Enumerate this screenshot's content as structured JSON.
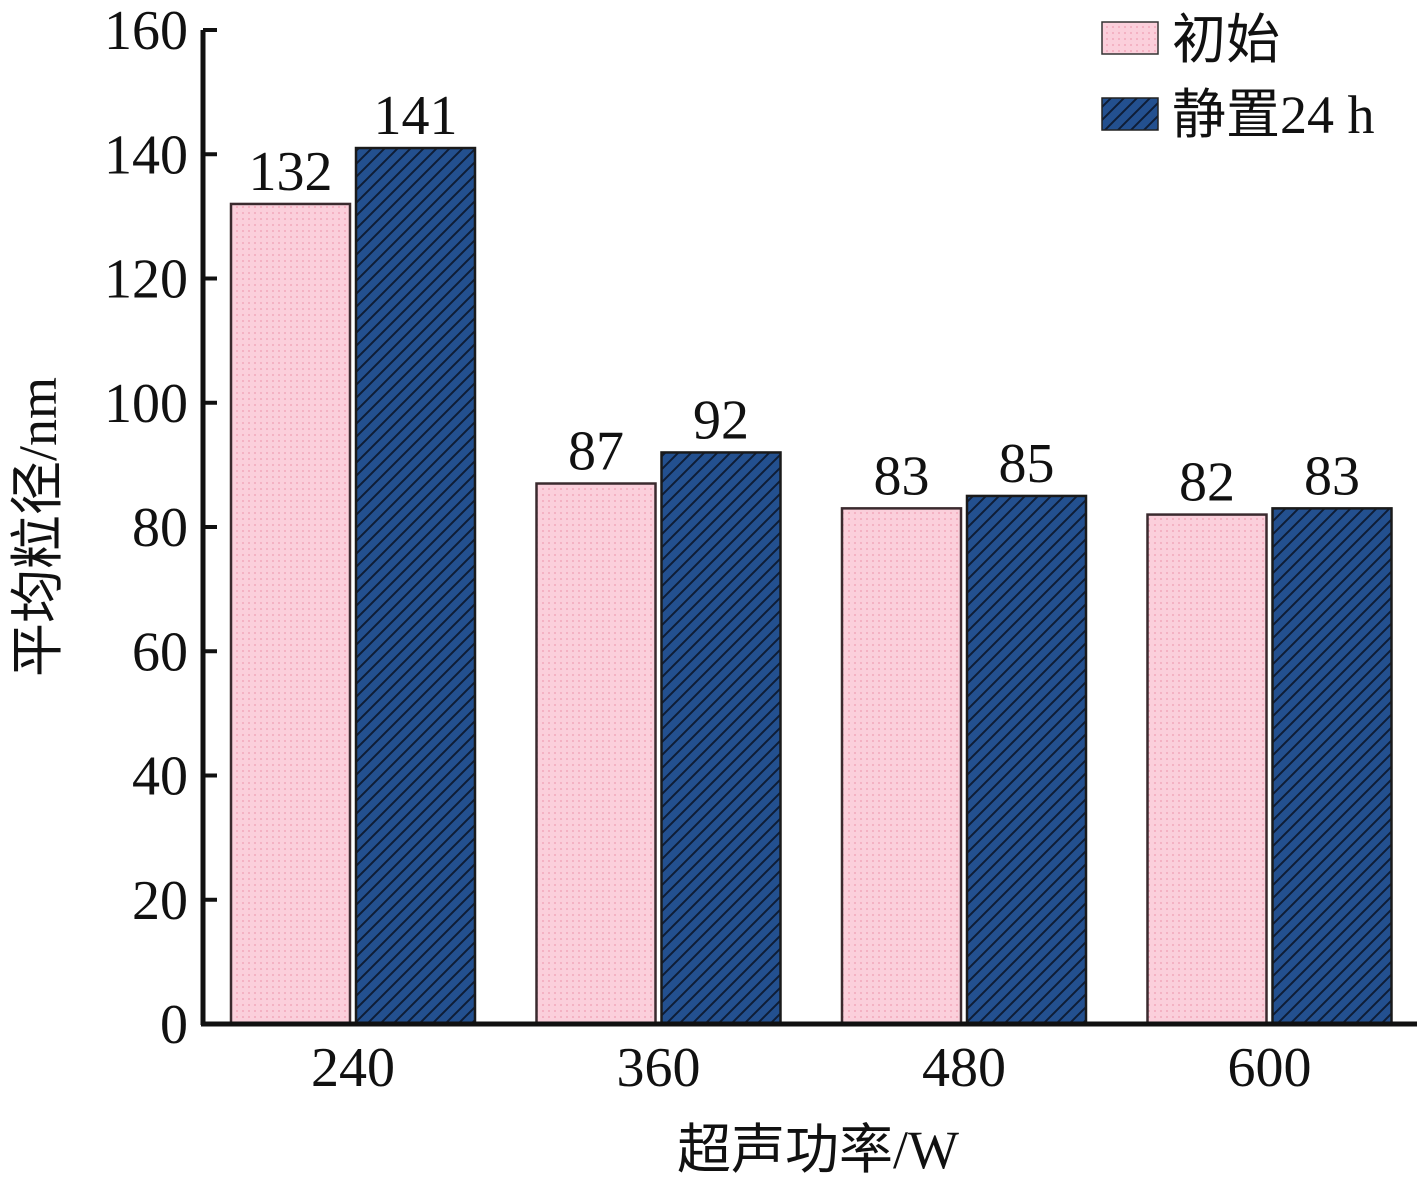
{
  "chart_data": {
    "type": "bar",
    "categories": [
      "240",
      "360",
      "480",
      "600"
    ],
    "series": [
      {
        "name": "初始",
        "values": [
          132,
          87,
          83,
          82
        ],
        "color": "#fbcfdb",
        "pattern": "dots"
      },
      {
        "name": "静置24 h",
        "values": [
          141,
          92,
          85,
          83
        ],
        "color": "#23508f",
        "pattern": "diagonal-hatch"
      }
    ],
    "xlabel": "超声功率/W",
    "ylabel": "平均粒径/nm",
    "ylim": [
      0,
      160
    ],
    "yticks": [
      "0",
      "20",
      "40",
      "60",
      "80",
      "100",
      "120",
      "140",
      "160"
    ],
    "grid": false,
    "legend_position": "top-right",
    "data_labels": true
  }
}
